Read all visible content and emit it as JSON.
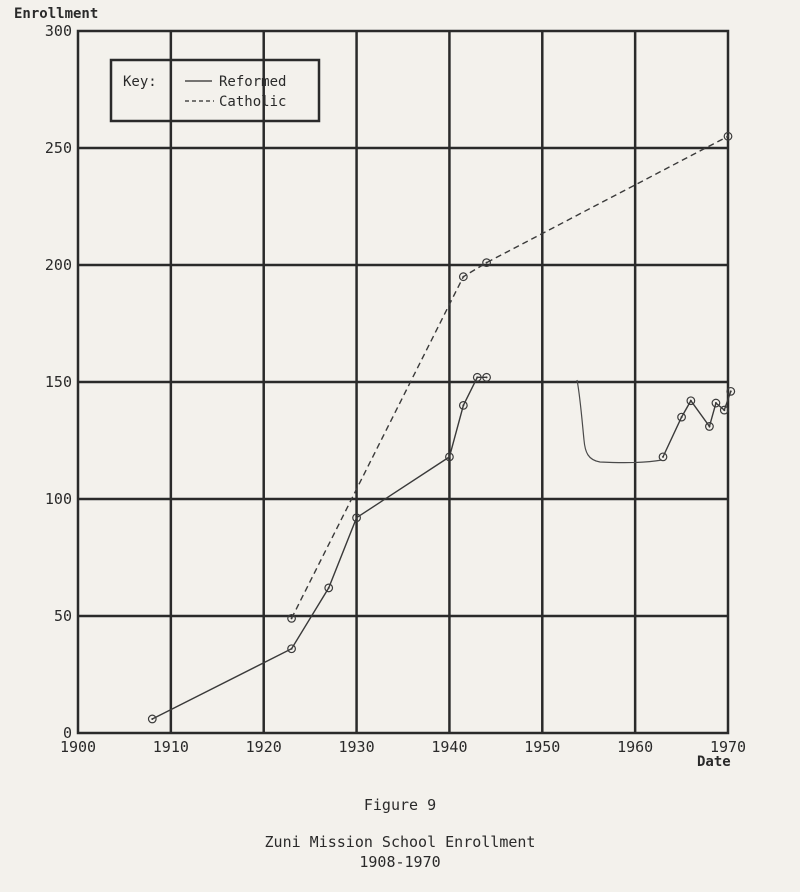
{
  "chart_data": {
    "type": "line",
    "xlabel": "Date",
    "ylabel": "Enrollment",
    "xlim": [
      1900,
      1970
    ],
    "ylim": [
      0,
      300
    ],
    "xticks": [
      1900,
      1910,
      1920,
      1930,
      1940,
      1950,
      1960,
      1970
    ],
    "yticks": [
      0,
      50,
      100,
      150,
      200,
      250,
      300
    ],
    "grid": true,
    "legend": {
      "placement": "top-left",
      "title": "Key:",
      "entries": [
        {
          "label": "Reformed",
          "style": "solid"
        },
        {
          "label": "Catholic",
          "style": "dashed"
        }
      ]
    },
    "series": [
      {
        "name": "Reformed",
        "style": "solid",
        "color": "#3a3a3a",
        "points": [
          [
            1908,
            6
          ],
          [
            1923,
            36
          ],
          [
            1927,
            62
          ],
          [
            1930,
            92
          ],
          [
            1940,
            118
          ],
          [
            1941.5,
            140
          ],
          [
            1943,
            152
          ],
          [
            1944,
            152
          ]
        ]
      },
      {
        "name": "Reformed",
        "style": "solid",
        "color": "#3a3a3a",
        "points": [
          [
            1963,
            118
          ],
          [
            1965,
            135
          ],
          [
            1966,
            142
          ],
          [
            1968,
            131
          ],
          [
            1968.7,
            141
          ],
          [
            1969.6,
            138
          ],
          [
            1970.3,
            146
          ]
        ]
      },
      {
        "name": "Catholic",
        "style": "dashed",
        "color": "#3a3a3a",
        "points": [
          [
            1923,
            49
          ],
          [
            1941.5,
            195
          ],
          [
            1944,
            201
          ],
          [
            1970,
            255
          ]
        ]
      }
    ]
  },
  "captions": {
    "figure_number": "Figure 9",
    "title_line1": "Zuni Mission School Enrollment",
    "title_line2": "1908-1970"
  }
}
